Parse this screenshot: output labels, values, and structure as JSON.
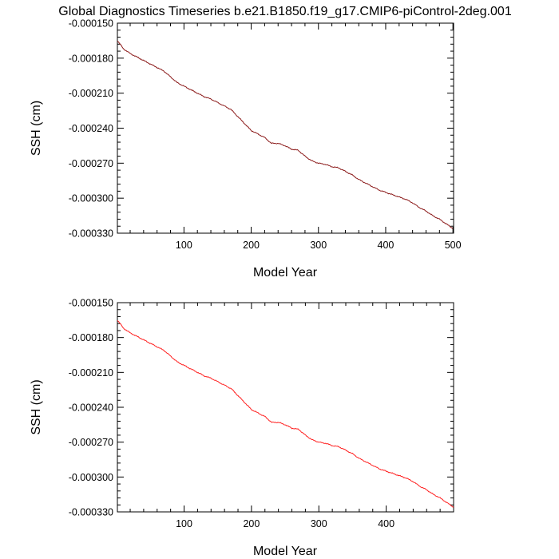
{
  "title": "Global Diagnostics Timeseries b.e21.B1850.f19_g17.CMIP6-piControl-2deg.001",
  "chart_data": [
    {
      "type": "line",
      "xlabel": "Model Year",
      "ylabel": "SSH (cm)",
      "xlim": [
        1,
        501
      ],
      "ylim": [
        -0.00033,
        -0.00015
      ],
      "x_ticks": [
        100,
        200,
        300,
        400,
        500
      ],
      "x_tick_labels": [
        "100",
        "200",
        "300",
        "400",
        "500"
      ],
      "y_ticks": [
        -0.00015,
        -0.00018,
        -0.00021,
        -0.00024,
        -0.00027,
        -0.0003,
        -0.00033
      ],
      "y_tick_labels": [
        "-0.000150",
        "-0.000180",
        "-0.000210",
        "-0.000240",
        "-0.000270",
        "-0.000300",
        "-0.000330"
      ],
      "grid": false,
      "line_color": "#8b1a1a",
      "series": [
        {
          "name": "SSH",
          "x": [
            1,
            5,
            10,
            20,
            30,
            40,
            50,
            60,
            70,
            80,
            90,
            100,
            110,
            120,
            130,
            140,
            150,
            160,
            170,
            180,
            190,
            200,
            210,
            220,
            230,
            240,
            250,
            260,
            270,
            280,
            290,
            300,
            310,
            320,
            330,
            340,
            350,
            360,
            370,
            380,
            390,
            400,
            410,
            420,
            430,
            440,
            450,
            460,
            470,
            480,
            490,
            500
          ],
          "values": [
            -0.000165,
            -0.000168,
            -0.000172,
            -0.000176,
            -0.000179,
            -0.000182,
            -0.000185,
            -0.000188,
            -0.000191,
            -0.000196,
            -0.000201,
            -0.000204,
            -0.000207,
            -0.00021,
            -0.000213,
            -0.000215,
            -0.000218,
            -0.000221,
            -0.000224,
            -0.00023,
            -0.000236,
            -0.000242,
            -0.000245,
            -0.000248,
            -0.000253,
            -0.000253,
            -0.000255,
            -0.000258,
            -0.000259,
            -0.000264,
            -0.000268,
            -0.00027,
            -0.000271,
            -0.000273,
            -0.000274,
            -0.000277,
            -0.00028,
            -0.000284,
            -0.000287,
            -0.00029,
            -0.000293,
            -0.000295,
            -0.000297,
            -0.000299,
            -0.000301,
            -0.000304,
            -0.000308,
            -0.000311,
            -0.000315,
            -0.000318,
            -0.000322,
            -0.000326
          ]
        }
      ]
    },
    {
      "type": "line",
      "xlabel": "Model Year",
      "ylabel": "SSH (cm)",
      "xlim": [
        1,
        500
      ],
      "ylim": [
        -0.00033,
        -0.00015
      ],
      "x_ticks": [
        100,
        200,
        300,
        400
      ],
      "x_tick_labels": [
        "100",
        "200",
        "300",
        "400"
      ],
      "y_ticks": [
        -0.00015,
        -0.00018,
        -0.00021,
        -0.00024,
        -0.00027,
        -0.0003,
        -0.00033
      ],
      "y_tick_labels": [
        "-0.000150",
        "-0.000180",
        "-0.000210",
        "-0.000240",
        "-0.000270",
        "-0.000300",
        "-0.000330"
      ],
      "grid": false,
      "line_color": "#ff2020",
      "series": [
        {
          "name": "SSH",
          "x": [
            1,
            5,
            10,
            20,
            30,
            40,
            50,
            60,
            70,
            80,
            90,
            100,
            110,
            120,
            130,
            140,
            150,
            160,
            170,
            180,
            190,
            200,
            210,
            220,
            230,
            240,
            250,
            260,
            270,
            280,
            290,
            300,
            310,
            320,
            330,
            340,
            350,
            360,
            370,
            380,
            390,
            400,
            410,
            420,
            430,
            440,
            450,
            460,
            470,
            480,
            490,
            500
          ],
          "values": [
            -0.000165,
            -0.000168,
            -0.000172,
            -0.000176,
            -0.000179,
            -0.000182,
            -0.000185,
            -0.000188,
            -0.000191,
            -0.000196,
            -0.000201,
            -0.000204,
            -0.000207,
            -0.00021,
            -0.000213,
            -0.000215,
            -0.000218,
            -0.000221,
            -0.000224,
            -0.00023,
            -0.000236,
            -0.000242,
            -0.000245,
            -0.000248,
            -0.000253,
            -0.000253,
            -0.000255,
            -0.000258,
            -0.000259,
            -0.000264,
            -0.000268,
            -0.00027,
            -0.000271,
            -0.000273,
            -0.000274,
            -0.000277,
            -0.00028,
            -0.000284,
            -0.000287,
            -0.00029,
            -0.000293,
            -0.000295,
            -0.000297,
            -0.000299,
            -0.000301,
            -0.000304,
            -0.000308,
            -0.000311,
            -0.000315,
            -0.000318,
            -0.000322,
            -0.000326
          ]
        }
      ]
    }
  ]
}
